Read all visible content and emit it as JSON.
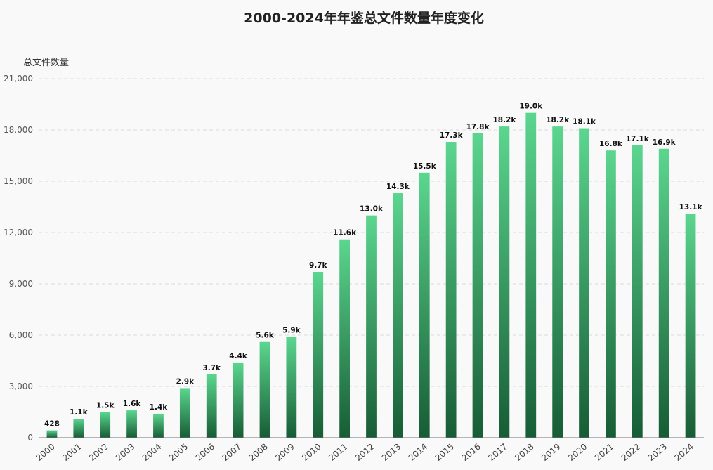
{
  "chart_data": {
    "type": "bar",
    "title": "2000-2024年年鉴总文件数量年度变化",
    "ylabel": "总文件数量",
    "xlabel": "",
    "ylim": [
      0,
      21000
    ],
    "y_ticks": [
      0,
      3000,
      6000,
      9000,
      12000,
      15000,
      18000,
      21000
    ],
    "y_tick_labels": [
      "0",
      "3,000",
      "6,000",
      "9,000",
      "12,000",
      "15,000",
      "18,000",
      "21,000"
    ],
    "grid": true,
    "legend": "none",
    "categories": [
      "2000",
      "2001",
      "2002",
      "2003",
      "2004",
      "2005",
      "2006",
      "2007",
      "2008",
      "2009",
      "2010",
      "2011",
      "2012",
      "2013",
      "2014",
      "2015",
      "2016",
      "2017",
      "2018",
      "2019",
      "2020",
      "2021",
      "2022",
      "2023",
      "2024"
    ],
    "values": [
      428,
      1100,
      1500,
      1600,
      1400,
      2900,
      3700,
      4400,
      5600,
      5900,
      9700,
      11600,
      13000,
      14300,
      15500,
      17300,
      17800,
      18200,
      19000,
      18200,
      18100,
      16800,
      17100,
      16900,
      13100
    ],
    "data_labels": [
      "428",
      "1.1k",
      "1.5k",
      "1.6k",
      "1.4k",
      "2.9k",
      "3.7k",
      "4.4k",
      "5.6k",
      "5.9k",
      "9.7k",
      "11.6k",
      "13.0k",
      "14.3k",
      "15.5k",
      "17.3k",
      "17.8k",
      "18.2k",
      "19.0k",
      "18.2k",
      "18.1k",
      "16.8k",
      "17.1k",
      "16.9k",
      "13.1k"
    ],
    "colors": {
      "bar_top": "#5bd68f",
      "bar_bottom": "#175c35",
      "grid": "#dcdcdc",
      "axis": "#6e7079",
      "background": "#f9f9f9"
    }
  }
}
